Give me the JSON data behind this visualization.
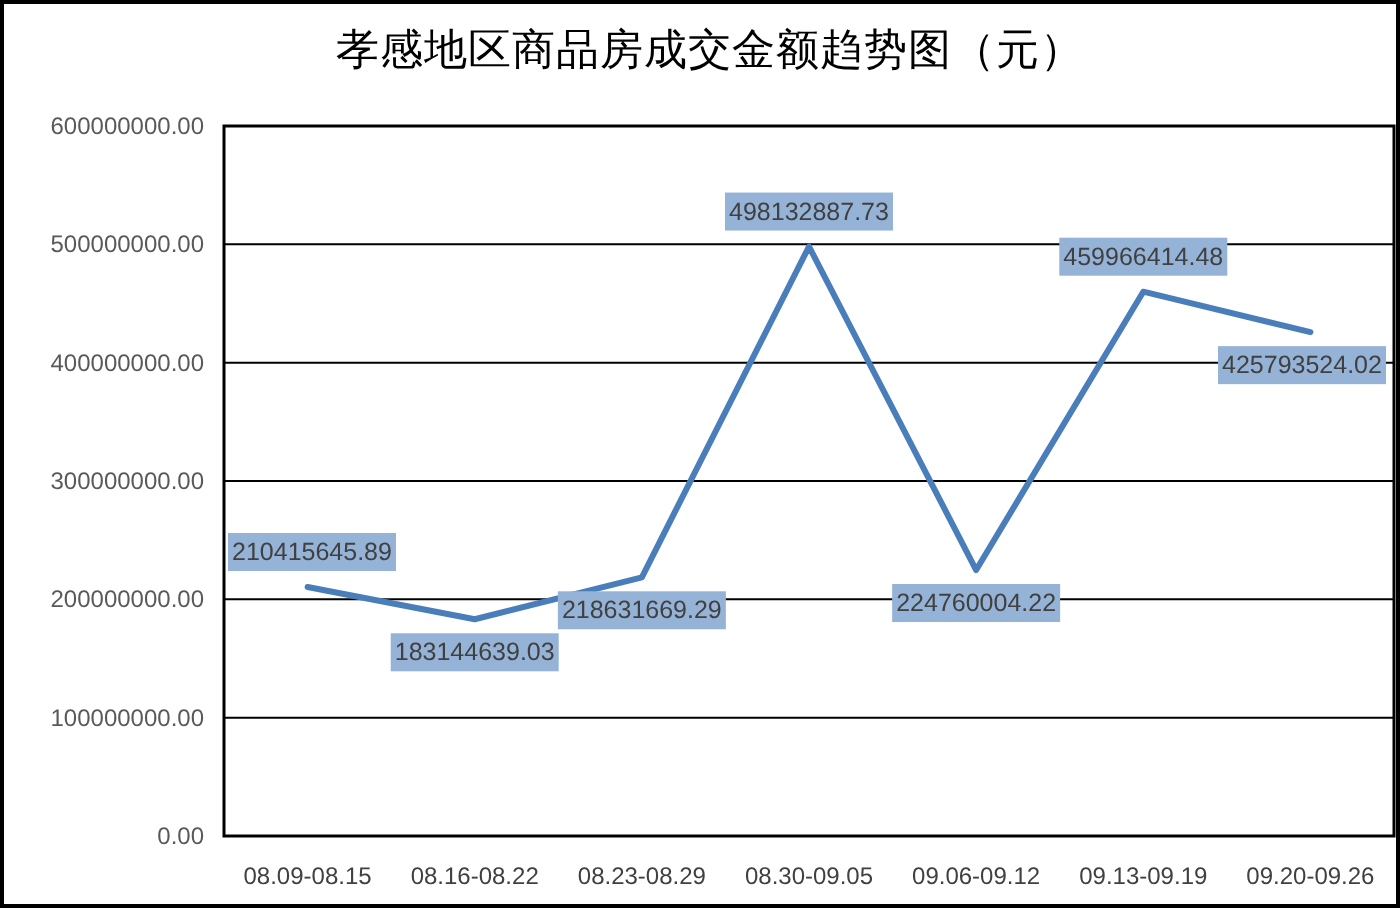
{
  "chart_data": {
    "type": "line",
    "title": "孝感地区商品房成交金额趋势图（元）",
    "categories": [
      "08.09-08.15",
      "08.16-08.22",
      "08.23-08.29",
      "08.30-09.05",
      "09.06-09.12",
      "09.13-09.19",
      "09.20-09.26"
    ],
    "series": [
      {
        "color": "#4a7ebb",
        "values": [
          210415645.89,
          183144639.03,
          218631669.29,
          498132887.73,
          224760004.22,
          459966414.48,
          425793524.02
        ]
      }
    ],
    "ylim": [
      0,
      600000000
    ],
    "yticks": [
      {
        "value": 0,
        "label": "0.00"
      },
      {
        "value": 100000000,
        "label": "100000000.00"
      },
      {
        "value": 200000000,
        "label": "200000000.00"
      },
      {
        "value": 300000000,
        "label": "300000000.00"
      },
      {
        "value": 400000000,
        "label": "400000000.00"
      },
      {
        "value": 500000000,
        "label": "500000000.00"
      },
      {
        "value": 600000000,
        "label": "600000000.00"
      }
    ],
    "grid": "y",
    "data_labels": true
  }
}
